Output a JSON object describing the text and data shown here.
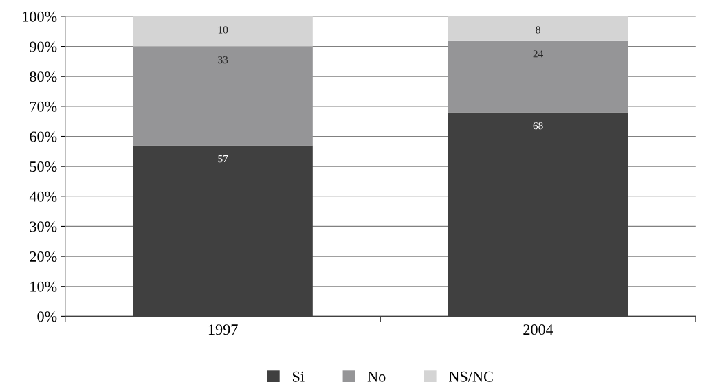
{
  "chart_data": {
    "type": "bar",
    "stacked": true,
    "categories": [
      "1997",
      "2004"
    ],
    "series": [
      {
        "name": "Si",
        "color": "#404040",
        "values": [
          57,
          68
        ]
      },
      {
        "name": "No",
        "color": "#959597",
        "values": [
          33,
          24
        ]
      },
      {
        "name": "NS/NC",
        "color": "#d4d4d4",
        "values": [
          10,
          8
        ]
      }
    ],
    "ylim": [
      0,
      100
    ],
    "yticks": [
      {
        "value": 0,
        "label": "0%"
      },
      {
        "value": 10,
        "label": "10%"
      },
      {
        "value": 20,
        "label": "20%"
      },
      {
        "value": 30,
        "label": "30%"
      },
      {
        "value": 40,
        "label": "40%"
      },
      {
        "value": 50,
        "label": "50%"
      },
      {
        "value": 60,
        "label": "60%"
      },
      {
        "value": 70,
        "label": "70%"
      },
      {
        "value": 80,
        "label": "80%"
      },
      {
        "value": 90,
        "label": "90%"
      },
      {
        "value": 100,
        "label": "100%"
      }
    ],
    "grid": "y",
    "legend": "bottom",
    "data_labels": true
  }
}
